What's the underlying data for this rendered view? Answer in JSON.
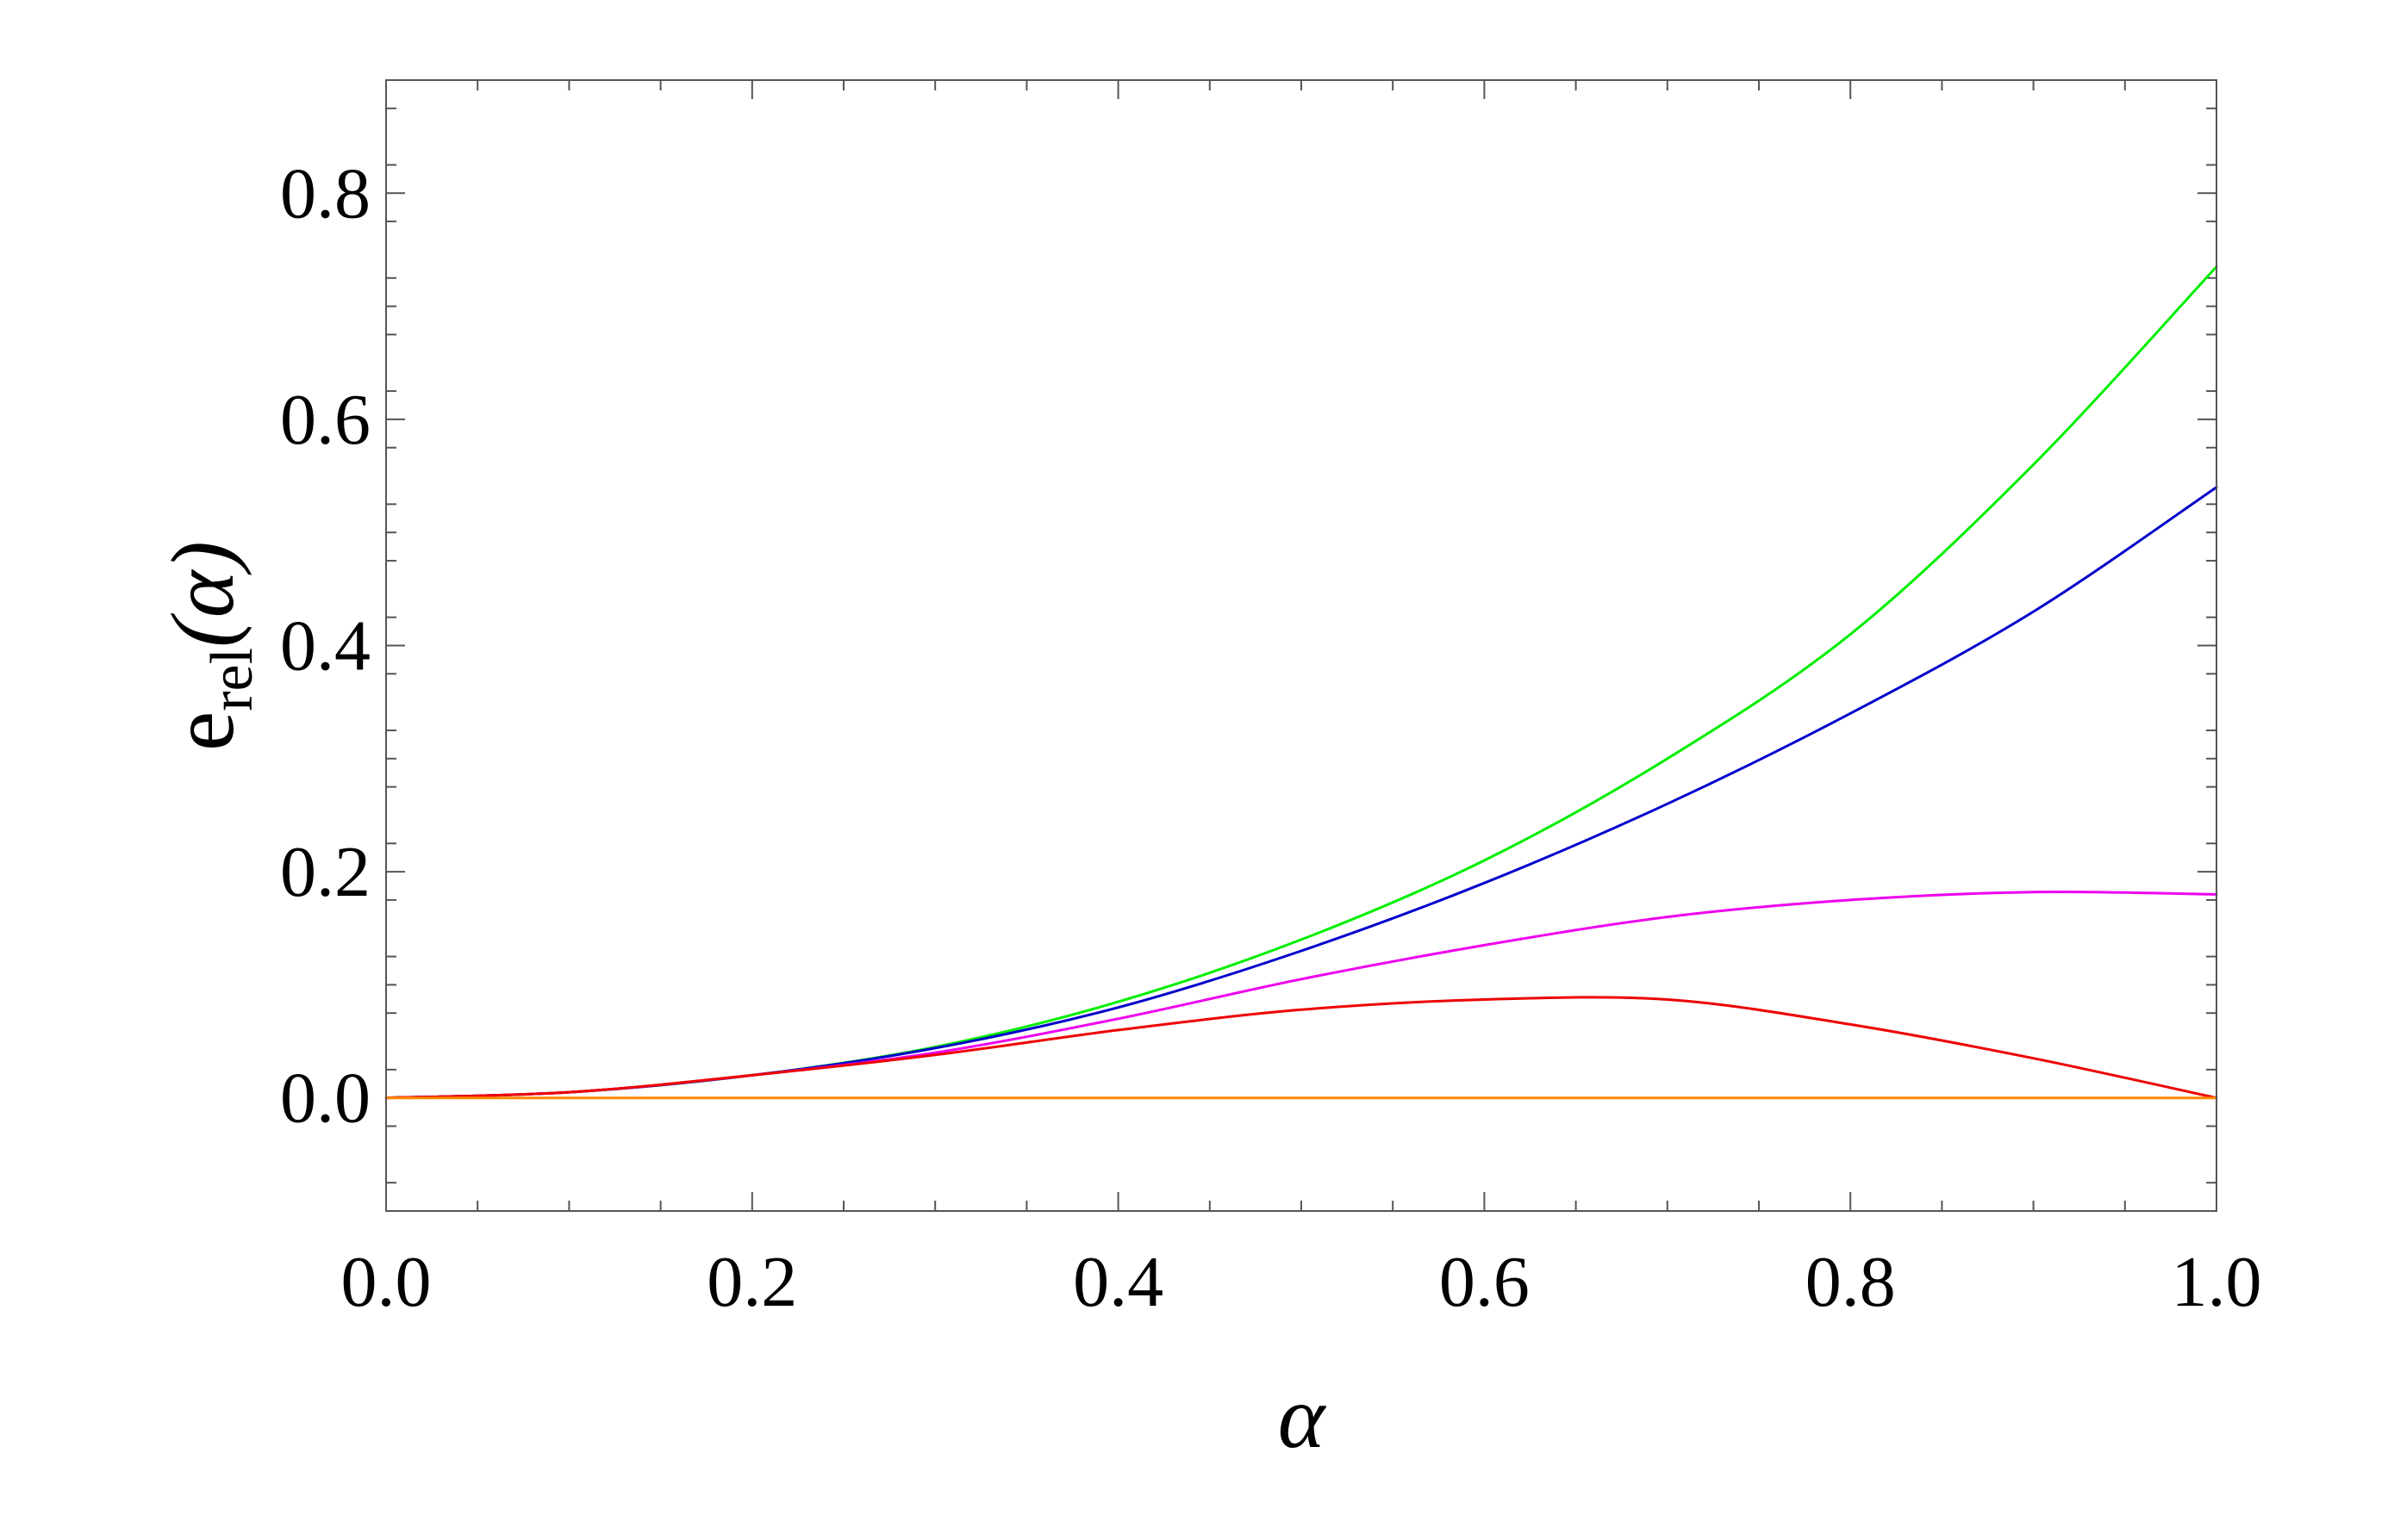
{
  "chart_data": {
    "type": "line",
    "xlabel": "α",
    "ylabel": {
      "base": "e",
      "subscript": "rel",
      "argument": "(α)"
    },
    "xlim": [
      0.0,
      1.0
    ],
    "ylim": [
      -0.1,
      0.9
    ],
    "xticks": [
      "0.0",
      "0.2",
      "0.4",
      "0.6",
      "0.8",
      "1.0"
    ],
    "yticks": [
      "0.0",
      "0.2",
      "0.4",
      "0.6",
      "0.8"
    ],
    "grid": false,
    "x": [
      0.0,
      0.1,
      0.2,
      0.3,
      0.4,
      0.5,
      0.6,
      0.7,
      0.8,
      0.9,
      1.0
    ],
    "series": [
      {
        "color": "#00ee00",
        "values": [
          0.0,
          0.005,
          0.02,
          0.045,
          0.085,
          0.14,
          0.21,
          0.3,
          0.41,
          0.56,
          0.735
        ]
      },
      {
        "color": "#0000cc",
        "values": [
          0.0,
          0.005,
          0.02,
          0.044,
          0.08,
          0.13,
          0.19,
          0.26,
          0.34,
          0.43,
          0.54
        ]
      },
      {
        "color": "#ee00ee",
        "values": [
          0.0,
          0.005,
          0.02,
          0.04,
          0.07,
          0.105,
          0.135,
          0.16,
          0.175,
          0.182,
          0.18
        ]
      },
      {
        "color": "#ee0000",
        "values": [
          0.0,
          0.005,
          0.02,
          0.038,
          0.06,
          0.078,
          0.087,
          0.087,
          0.065,
          0.035,
          0.0
        ]
      },
      {
        "color": "#ff8800",
        "values": [
          0.0,
          0.0,
          0.0,
          0.0,
          0.0,
          0.0,
          0.0,
          0.0,
          0.0,
          0.0,
          0.0
        ]
      }
    ]
  }
}
